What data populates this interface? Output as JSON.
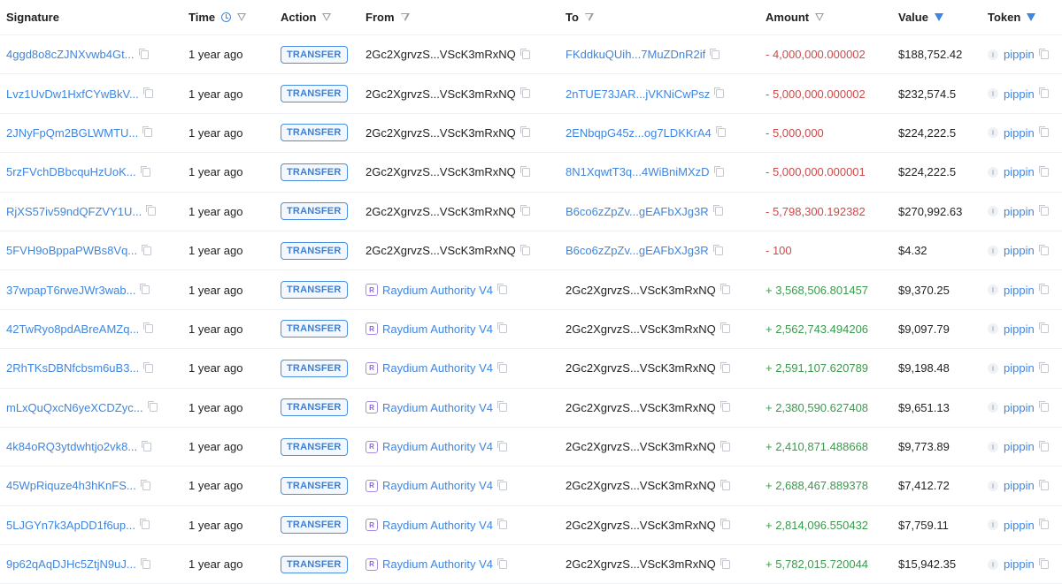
{
  "columns": [
    {
      "label": "Signature",
      "icons": []
    },
    {
      "label": "Time",
      "icons": [
        "clock-icon",
        "filter-icon"
      ]
    },
    {
      "label": "Action",
      "icons": [
        "filter-icon"
      ]
    },
    {
      "label": "From",
      "icons": [
        "filter-icon"
      ]
    },
    {
      "label": "To",
      "icons": [
        "filter-icon"
      ]
    },
    {
      "label": "Amount",
      "icons": [
        "filter-icon"
      ]
    },
    {
      "label": "Value",
      "icons": [
        "filter-active-icon"
      ]
    },
    {
      "label": "Token",
      "icons": [
        "filter-active-icon"
      ]
    }
  ],
  "colors": {
    "link": "#3f86e0",
    "negative": "#cc4b4b",
    "positive": "#3a9b4c"
  },
  "rows": [
    {
      "signature": "4ggd8o8cZJNXvwb4Gt...",
      "time": "1 year ago",
      "action": "TRANSFER",
      "from": "2Gc2XgrvzS...VScK3mRxNQ",
      "from_link": false,
      "to": "FKddkuQUih...7MuZDnR2if",
      "to_link": true,
      "amount": "- 4,000,000.000002",
      "sign": "neg",
      "value": "$188,752.42",
      "token": "pippin"
    },
    {
      "signature": "Lvz1UvDw1HxfCYwBkV...",
      "time": "1 year ago",
      "action": "TRANSFER",
      "from": "2Gc2XgrvzS...VScK3mRxNQ",
      "from_link": false,
      "to": "2nTUE73JAR...jVKNiCwPsz",
      "to_link": true,
      "amount": "- 5,000,000.000002",
      "sign": "neg",
      "value": "$232,574.5",
      "token": "pippin"
    },
    {
      "signature": "2JNyFpQm2BGLWMTU...",
      "time": "1 year ago",
      "action": "TRANSFER",
      "from": "2Gc2XgrvzS...VScK3mRxNQ",
      "from_link": false,
      "to": "2ENbqpG45z...og7LDKKrA4",
      "to_link": true,
      "amount": "- 5,000,000",
      "sign": "neg",
      "value": "$224,222.5",
      "token": "pippin"
    },
    {
      "signature": "5rzFVchDBbcquHzUoK...",
      "time": "1 year ago",
      "action": "TRANSFER",
      "from": "2Gc2XgrvzS...VScK3mRxNQ",
      "from_link": false,
      "to": "8N1XqwtT3q...4WiBniMXzD",
      "to_link": true,
      "amount": "- 5,000,000.000001",
      "sign": "neg",
      "value": "$224,222.5",
      "token": "pippin"
    },
    {
      "signature": "RjXS57iv59ndQFZVY1U...",
      "time": "1 year ago",
      "action": "TRANSFER",
      "from": "2Gc2XgrvzS...VScK3mRxNQ",
      "from_link": false,
      "to": "B6co6zZpZv...gEAFbXJg3R",
      "to_link": true,
      "amount": "- 5,798,300.192382",
      "sign": "neg",
      "value": "$270,992.63",
      "token": "pippin"
    },
    {
      "signature": "5FVH9oBppaPWBs8Vq...",
      "time": "1 year ago",
      "action": "TRANSFER",
      "from": "2Gc2XgrvzS...VScK3mRxNQ",
      "from_link": false,
      "to": "B6co6zZpZv...gEAFbXJg3R",
      "to_link": true,
      "amount": "- 100",
      "sign": "neg",
      "value": "$4.32",
      "token": "pippin"
    },
    {
      "signature": "37wpapT6rweJWr3wab...",
      "time": "1 year ago",
      "action": "TRANSFER",
      "from": "Raydium Authority V4",
      "from_link": true,
      "to": "2Gc2XgrvzS...VScK3mRxNQ",
      "to_link": false,
      "amount": "+ 3,568,506.801457",
      "sign": "pos",
      "value": "$9,370.25",
      "token": "pippin"
    },
    {
      "signature": "42TwRyo8pdABreAMZq...",
      "time": "1 year ago",
      "action": "TRANSFER",
      "from": "Raydium Authority V4",
      "from_link": true,
      "to": "2Gc2XgrvzS...VScK3mRxNQ",
      "to_link": false,
      "amount": "+ 2,562,743.494206",
      "sign": "pos",
      "value": "$9,097.79",
      "token": "pippin"
    },
    {
      "signature": "2RhTKsDBNfcbsm6uB3...",
      "time": "1 year ago",
      "action": "TRANSFER",
      "from": "Raydium Authority V4",
      "from_link": true,
      "to": "2Gc2XgrvzS...VScK3mRxNQ",
      "to_link": false,
      "amount": "+ 2,591,107.620789",
      "sign": "pos",
      "value": "$9,198.48",
      "token": "pippin"
    },
    {
      "signature": "mLxQuQxcN6yeXCDZyc...",
      "time": "1 year ago",
      "action": "TRANSFER",
      "from": "Raydium Authority V4",
      "from_link": true,
      "to": "2Gc2XgrvzS...VScK3mRxNQ",
      "to_link": false,
      "amount": "+ 2,380,590.627408",
      "sign": "pos",
      "value": "$9,651.13",
      "token": "pippin"
    },
    {
      "signature": "4k84oRQ3ytdwhtjo2vk8...",
      "time": "1 year ago",
      "action": "TRANSFER",
      "from": "Raydium Authority V4",
      "from_link": true,
      "to": "2Gc2XgrvzS...VScK3mRxNQ",
      "to_link": false,
      "amount": "+ 2,410,871.488668",
      "sign": "pos",
      "value": "$9,773.89",
      "token": "pippin"
    },
    {
      "signature": "45WpRiquze4h3hKnFS...",
      "time": "1 year ago",
      "action": "TRANSFER",
      "from": "Raydium Authority V4",
      "from_link": true,
      "to": "2Gc2XgrvzS...VScK3mRxNQ",
      "to_link": false,
      "amount": "+ 2,688,467.889378",
      "sign": "pos",
      "value": "$7,412.72",
      "token": "pippin"
    },
    {
      "signature": "5LJGYn7k3ApDD1f6up...",
      "time": "1 year ago",
      "action": "TRANSFER",
      "from": "Raydium Authority V4",
      "from_link": true,
      "to": "2Gc2XgrvzS...VScK3mRxNQ",
      "to_link": false,
      "amount": "+ 2,814,096.550432",
      "sign": "pos",
      "value": "$7,759.11",
      "token": "pippin"
    },
    {
      "signature": "9p62qAqDJHc5ZtjN9uJ...",
      "time": "1 year ago",
      "action": "TRANSFER",
      "from": "Raydium Authority V4",
      "from_link": true,
      "to": "2Gc2XgrvzS...VScK3mRxNQ",
      "to_link": false,
      "amount": "+ 5,782,015.720044",
      "sign": "pos",
      "value": "$15,942.35",
      "token": "pippin"
    }
  ]
}
